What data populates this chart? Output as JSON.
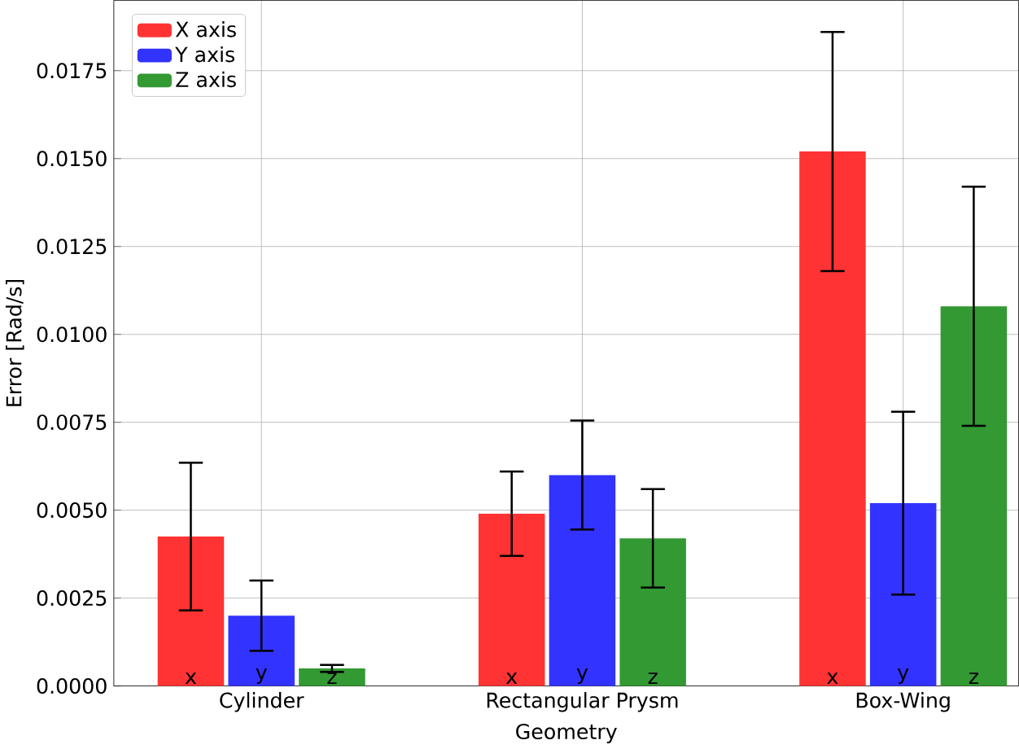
{
  "chart_data": {
    "type": "bar",
    "xlabel": "Geometry",
    "ylabel": "Error [Rad/s]",
    "categories": [
      "Cylinder",
      "Rectangular Prysm",
      "Box-Wing"
    ],
    "series": [
      {
        "name": "X axis",
        "color": "#ff3333",
        "values": [
          0.00425,
          0.0049,
          0.0152
        ],
        "errors": [
          0.0021,
          0.0012,
          0.0034
        ],
        "value_labels": [
          "x",
          "x",
          "x"
        ]
      },
      {
        "name": "Y axis",
        "color": "#3333ff",
        "values": [
          0.002,
          0.006,
          0.0052
        ],
        "errors": [
          0.001,
          0.00155,
          0.0026
        ],
        "value_labels": [
          "y",
          "y",
          "y"
        ]
      },
      {
        "name": "Z axis",
        "color": "#339933",
        "values": [
          0.0005,
          0.0042,
          0.0108
        ],
        "errors": [
          0.0001,
          0.0014,
          0.0034
        ],
        "value_labels": [
          "z",
          "z",
          "z"
        ]
      }
    ],
    "ylim": [
      0,
      0.0195
    ],
    "yticks": [
      {
        "value": 0,
        "label": "0.0000"
      },
      {
        "value": 0.0025,
        "label": "0.0025"
      },
      {
        "value": 0.005,
        "label": "0.0050"
      },
      {
        "value": 0.0075,
        "label": "0.0075"
      },
      {
        "value": 0.01,
        "label": "0.0100"
      },
      {
        "value": 0.0125,
        "label": "0.0125"
      },
      {
        "value": 0.015,
        "label": "0.0150"
      },
      {
        "value": 0.0175,
        "label": "0.0175"
      }
    ],
    "grid": true,
    "legend": "top left"
  }
}
